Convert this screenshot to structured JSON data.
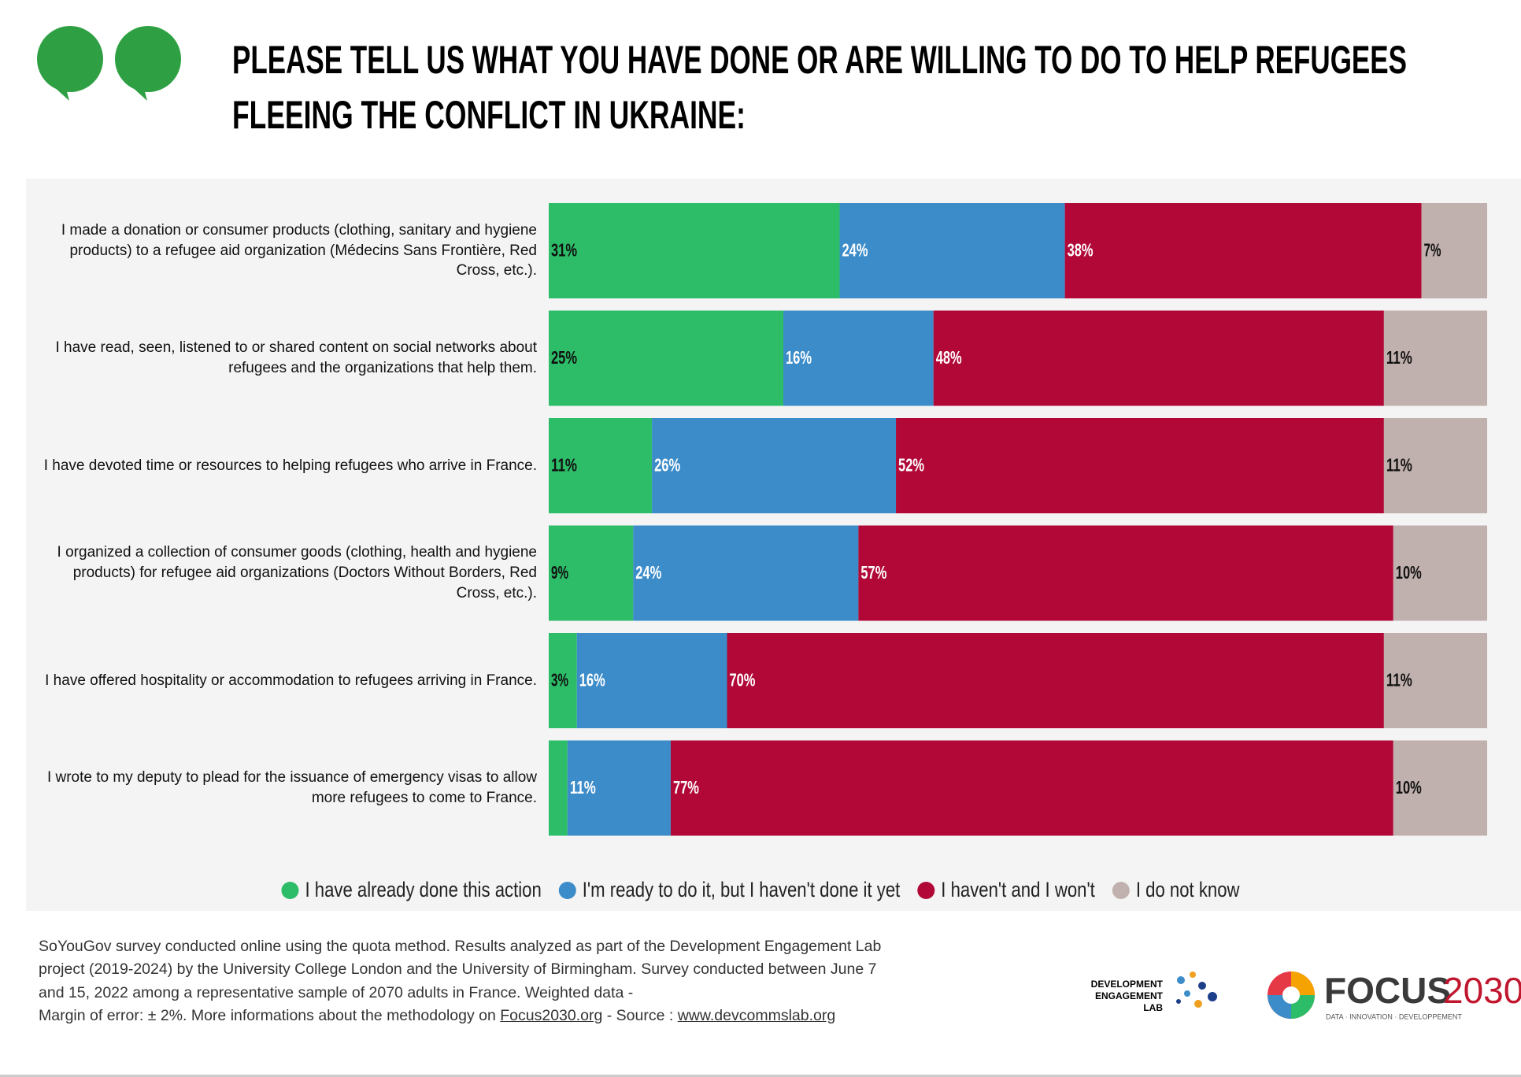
{
  "chart_data": {
    "type": "stacked-bar",
    "title": [
      "PLEASE TELL US WHAT YOU HAVE DONE OR ARE WILLING TO DO TO HELP REFUGEES",
      "FLEEING THE CONFLICT IN UKRAINE:"
    ],
    "categories": [
      "I made a donation or consumer products (clothing, sanitary and hygiene products) to a refugee aid organization (Médecins Sans Frontière, Red Cross, etc.).",
      "I have read, seen, listened to or shared content on social networks about refugees and the organizations that help them.",
      "I have devoted time or resources to helping refugees who arrive in France.",
      "I organized a collection of consumer goods (clothing, health and hygiene products) for refugee aid organizations (Doctors Without Borders, Red Cross, etc.).",
      "I have offered hospitality or accommodation to refugees arriving in France.",
      "I wrote to my deputy to plead for the issuance of emergency visas to allow more refugees to come to France."
    ],
    "xlim": [
      0,
      100
    ],
    "series": [
      {
        "name": "I have already done this action",
        "color": "#2dbd68",
        "values": [
          31,
          25,
          11,
          9,
          3,
          2
        ],
        "value_labels": [
          "31%",
          "25%",
          "11%",
          "9%",
          "3%",
          null
        ]
      },
      {
        "name": "I'm ready to do it, but I haven't done it yet",
        "color": "#3b8cc9",
        "values": [
          24,
          16,
          26,
          24,
          16,
          11
        ],
        "value_labels": [
          "24%",
          "16%",
          "26%",
          "24%",
          "16%",
          "11%"
        ]
      },
      {
        "name": "I haven't and I won't",
        "color": "#b10838",
        "values": [
          38,
          48,
          52,
          57,
          70,
          77
        ],
        "value_labels": [
          "38%",
          "48%",
          "52%",
          "57%",
          "70%",
          "77%"
        ]
      },
      {
        "name": "I do not know",
        "color": "#c1b1ae",
        "values": [
          7,
          11,
          11,
          10,
          11,
          10
        ],
        "value_labels": [
          "7%",
          "11%",
          "11%",
          "10%",
          "11%",
          "10%"
        ]
      }
    ]
  },
  "note": {
    "lines": [
      "SoYouGov survey conducted online using the quota method. Results analyzed as part of the Development Engagement Lab",
      "project (2019-2024) by the University College London and the University of Birmingham. Survey conducted between June 7",
      "and 15, 2022 among a representative sample of 2070 adults in France. Weighted data -"
    ],
    "last": [
      "Margin of error: ± 2%. More informations about the methodology on ",
      "Focus2030.org",
      " - Source : ",
      "www.devcommslab.org"
    ]
  },
  "logos": {
    "del": [
      "DEVELOPMENT",
      "ENGAGEMENT",
      "LAB"
    ],
    "focus": [
      "FOCUS",
      "2030"
    ],
    "tagline": "DATA · INNOVATION · DEVELOPPEMENT"
  }
}
